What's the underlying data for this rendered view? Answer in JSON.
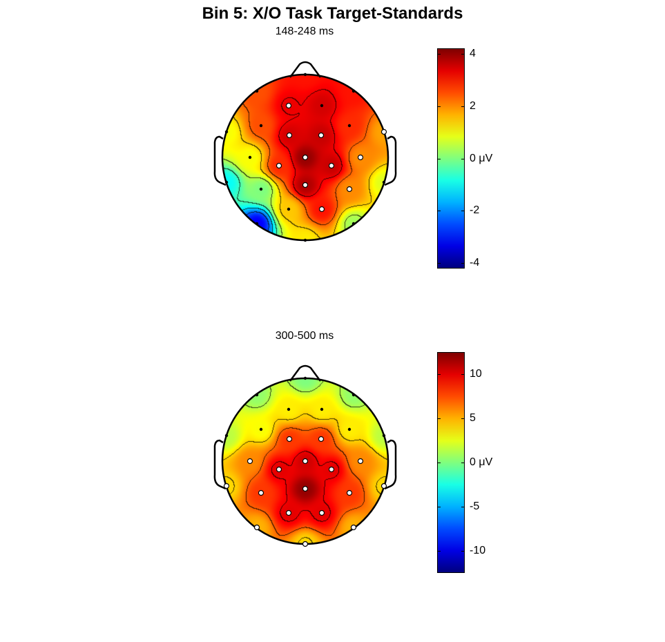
{
  "title": "Bin 5: X/O Task Target-Standards",
  "colormap": "jet",
  "chart_data": [
    {
      "type": "heatmap",
      "subtype": "scalp-topography",
      "subtitle": "148-248 ms",
      "unit": "μV",
      "clim": [
        -4.2,
        4.2
      ],
      "colorbar_ticks": [
        4,
        2,
        0,
        -2,
        -4
      ],
      "colorbar_tick_labels": [
        "4",
        "2",
        "0  μV",
        "-2",
        "-4"
      ],
      "contours": true,
      "electrode_values": [
        3,
        2.5,
        3,
        3.3,
        3.5,
        2.5,
        2.8,
        1.0,
        1.8,
        3.5,
        3.6,
        1.0,
        4.0,
        2.0,
        2.8,
        3.6,
        -1.0,
        0.8,
        3.8,
        0.0,
        2.0,
        1.5,
        3.0,
        -3.2,
        0.3,
        1.2
      ],
      "electrode_significant": [
        false,
        false,
        false,
        true,
        false,
        false,
        false,
        false,
        true,
        true,
        true,
        false,
        true,
        true,
        true,
        true,
        false,
        false,
        true,
        false,
        true,
        false,
        true,
        false,
        false,
        false
      ]
    },
    {
      "type": "heatmap",
      "subtype": "scalp-topography",
      "subtitle": "300-500 ms",
      "unit": "μV",
      "clim": [
        -12.5,
        12.5
      ],
      "colorbar_ticks": [
        10,
        5,
        0,
        -5,
        -10
      ],
      "colorbar_tick_labels": [
        "10",
        "5",
        "0  μV",
        "-5",
        "-10"
      ],
      "contours": true,
      "electrode_values": [
        0,
        0.5,
        0.5,
        3.5,
        3.5,
        3.0,
        3.5,
        1.5,
        1.5,
        8,
        8,
        6,
        10.5,
        6,
        10,
        10,
        4,
        4,
        12,
        8,
        8,
        10,
        10,
        5,
        5,
        4
      ],
      "electrode_significant": [
        false,
        false,
        false,
        false,
        false,
        false,
        false,
        false,
        false,
        true,
        true,
        true,
        true,
        true,
        true,
        true,
        true,
        true,
        true,
        true,
        true,
        true,
        true,
        true,
        true,
        true
      ]
    }
  ]
}
